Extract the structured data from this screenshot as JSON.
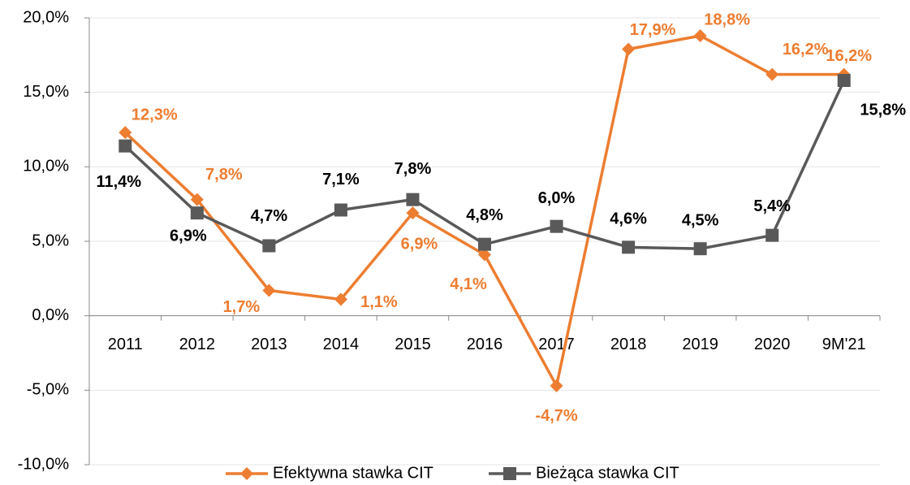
{
  "chart_data": {
    "type": "line",
    "categories": [
      "2011",
      "2012",
      "2013",
      "2014",
      "2015",
      "2016",
      "2017",
      "2018",
      "2019",
      "2020",
      "9M'21"
    ],
    "series": [
      {
        "name": "Efektywna stawka CIT",
        "color": "#ed7d31",
        "marker": "diamond",
        "values": [
          12.3,
          7.8,
          1.7,
          1.1,
          6.9,
          4.1,
          -4.7,
          17.9,
          18.8,
          16.2,
          16.2
        ],
        "value_labels": [
          "12,3%",
          "7,8%",
          "1,7%",
          "1,1%",
          "6,9%",
          "4,1%",
          "-4,7%",
          "17,9%",
          "18,8%",
          "16,2%",
          "16,2%"
        ]
      },
      {
        "name": "Bieżąca stawka CIT",
        "color": "#595959",
        "marker": "square",
        "values": [
          11.4,
          6.9,
          4.7,
          7.1,
          7.8,
          4.8,
          6.0,
          4.6,
          4.5,
          5.4,
          15.8
        ],
        "value_labels": [
          "11,4%",
          "6,9%",
          "4,7%",
          "7,1%",
          "7,8%",
          "4,8%",
          "6,0%",
          "4,6%",
          "4,5%",
          "5,4%",
          "15,8%"
        ]
      }
    ],
    "ylim": [
      -10,
      20
    ],
    "yticks": [
      {
        "value": -10,
        "label": "-10,0%"
      },
      {
        "value": -5,
        "label": "-5,0%"
      },
      {
        "value": 0,
        "label": "0,0%"
      },
      {
        "value": 5,
        "label": "5,0%"
      },
      {
        "value": 10,
        "label": "10,0%"
      },
      {
        "value": 15,
        "label": "15,0%"
      },
      {
        "value": 20,
        "label": "20,0%"
      }
    ],
    "grid": true,
    "legend": "bottom"
  }
}
